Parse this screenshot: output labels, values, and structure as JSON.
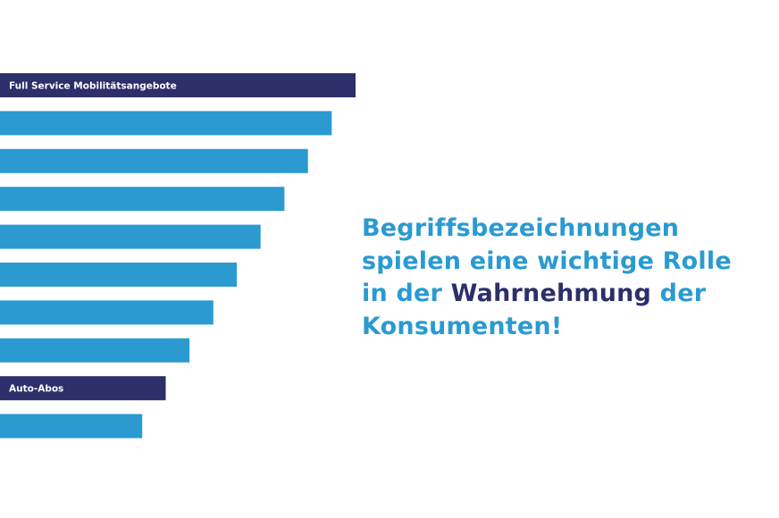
{
  "colors": {
    "highlight_bar": "#2c2f6a",
    "default_bar": "#2a9ad1",
    "headline": "#2a9ad1",
    "headline_emphasis": "#2c2f6a",
    "bar_label": "#ffffff"
  },
  "chart_data": {
    "type": "bar",
    "orientation": "horizontal",
    "categories": [
      "Full Service Mobilitätsangebote",
      "",
      "",
      "",
      "",
      "",
      "",
      "",
      "Auto-Abos",
      ""
    ],
    "values": [
      10,
      9.33,
      8.66,
      8.0,
      7.33,
      6.66,
      6.0,
      5.33,
      4.66,
      4.0
    ],
    "highlighted": [
      true,
      false,
      false,
      false,
      false,
      false,
      false,
      false,
      true,
      false
    ],
    "xlim": [
      0,
      10
    ],
    "grid": false,
    "axes_visible": false,
    "legend": "none"
  },
  "headline": {
    "line1": "Begriffsbezeichnungen",
    "line2": "spielen eine wichtige Rolle",
    "line3_before": "in der ",
    "line3_emphasis": "Wahrnehmung",
    "line3_after": " der",
    "line4": "Konsumenten!"
  }
}
